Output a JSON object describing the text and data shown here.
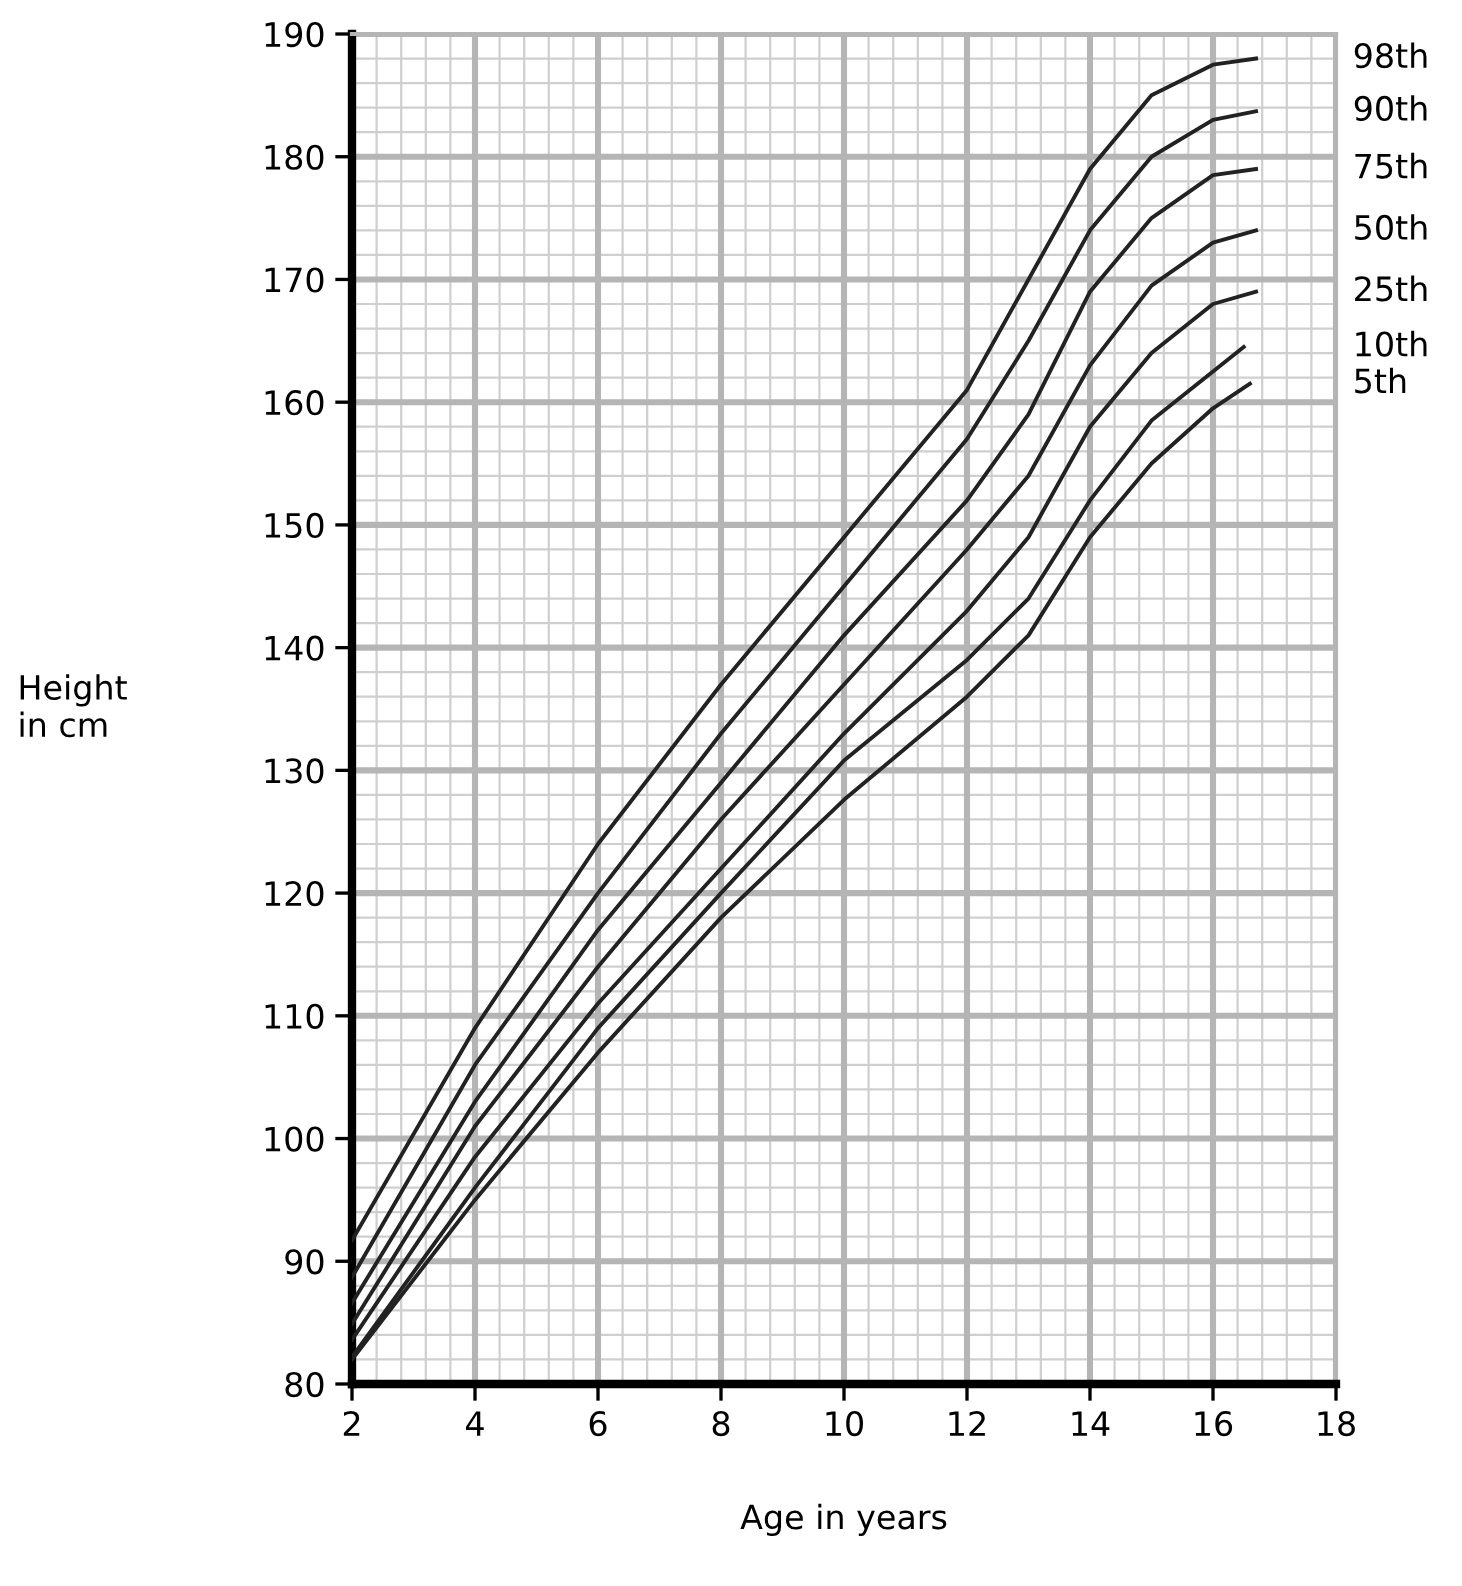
{
  "chart_data": {
    "type": "line",
    "xlabel": "Age in years",
    "ylabel": "Height\nin cm",
    "xlim": [
      2,
      18
    ],
    "ylim": [
      80,
      190
    ],
    "xticks": [
      2,
      4,
      6,
      8,
      10,
      12,
      14,
      16,
      18
    ],
    "yticks": [
      80,
      90,
      100,
      110,
      120,
      130,
      140,
      150,
      160,
      170,
      180,
      190
    ],
    "grid": true,
    "legend": false,
    "marker": "none",
    "line_style": "solid",
    "series": [
      {
        "name": "98th",
        "color": "#222222",
        "x": [
          2,
          4,
          6,
          8,
          10,
          12,
          13,
          14,
          15,
          16,
          16.7
        ],
        "values": [
          91.7,
          109,
          124,
          137,
          149,
          161,
          170,
          179,
          185,
          187.5,
          188
        ]
      },
      {
        "name": "90th",
        "color": "#222222",
        "x": [
          2,
          4,
          6,
          8,
          10,
          12,
          13,
          14,
          15,
          16,
          16.7
        ],
        "values": [
          88.7,
          106,
          120,
          133,
          145,
          157,
          165,
          174,
          180,
          183,
          183.7
        ]
      },
      {
        "name": "75th",
        "color": "#222222",
        "x": [
          2,
          4,
          6,
          8,
          10,
          12,
          13,
          14,
          15,
          16,
          16.7
        ],
        "values": [
          86.6,
          103,
          117,
          129,
          141,
          152,
          159,
          169,
          175,
          178.5,
          179
        ]
      },
      {
        "name": "50th",
        "color": "#222222",
        "x": [
          2,
          4,
          6,
          8,
          10,
          12,
          13,
          14,
          15,
          16,
          16.7
        ],
        "values": [
          84.9,
          101,
          114,
          126,
          137,
          148,
          154,
          163,
          169.5,
          173,
          174
        ]
      },
      {
        "name": "25th",
        "color": "#222222",
        "x": [
          2,
          4,
          6,
          8,
          10,
          12,
          13,
          14,
          15,
          16,
          16.7
        ],
        "values": [
          83.6,
          98.5,
          111,
          122,
          133,
          143,
          149,
          158,
          164,
          168,
          169
        ]
      },
      {
        "name": "10th",
        "color": "#222222",
        "x": [
          2,
          4,
          6,
          8,
          10,
          12,
          13,
          14,
          15,
          16,
          16.5
        ],
        "values": [
          82.2,
          96,
          109,
          120,
          130.8,
          139,
          144,
          152,
          158.5,
          162.5,
          164.5
        ]
      },
      {
        "name": "5th",
        "color": "#222222",
        "x": [
          2,
          4,
          6,
          8,
          10,
          12,
          13,
          14,
          15,
          16,
          16.6
        ],
        "values": [
          82,
          95,
          107,
          118,
          127.6,
          136,
          141,
          149,
          155,
          159.5,
          161.5
        ]
      }
    ]
  }
}
